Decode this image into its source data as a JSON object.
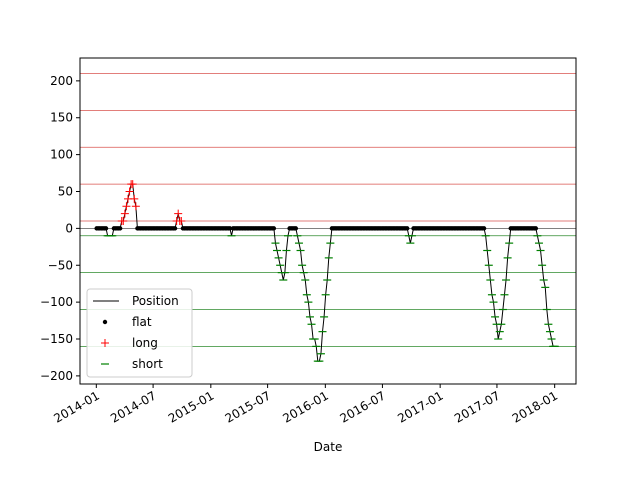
{
  "chart_data": {
    "type": "line",
    "title": "",
    "xlabel": "Date",
    "ylabel": "",
    "x_tick_labels": [
      "2014-01",
      "2014-07",
      "2015-01",
      "2015-07",
      "2016-01",
      "2016-07",
      "2017-01",
      "2017-07",
      "2018-01"
    ],
    "y_ticks": [
      -200,
      -150,
      -100,
      -50,
      0,
      50,
      100,
      150,
      200
    ],
    "xlim": [
      "2013-11-10",
      "2018-03-10"
    ],
    "ylim": [
      -211,
      231
    ],
    "grid": false,
    "legend_position": "lower-left",
    "legend": [
      "Position",
      "flat",
      "long",
      "short"
    ],
    "colors": {
      "position": "#000000",
      "flat": "#000000",
      "long": "#ff0000",
      "short": "#008000",
      "long_threshold": "#d9534f",
      "short_threshold": "#2e8b2e"
    },
    "long_thresholds": [
      10,
      60,
      110,
      160,
      210
    ],
    "short_thresholds": [
      -10,
      -60,
      -110,
      -160
    ],
    "series": [
      {
        "name": "Position",
        "points": [
          [
            "2014-01-02",
            0
          ],
          [
            "2014-02-01",
            0
          ],
          [
            "2014-02-08",
            -10
          ],
          [
            "2014-02-22",
            -10
          ],
          [
            "2014-03-01",
            0
          ],
          [
            "2014-03-20",
            0
          ],
          [
            "2014-04-01",
            20
          ],
          [
            "2014-04-10",
            40
          ],
          [
            "2014-04-18",
            50
          ],
          [
            "2014-04-24",
            60
          ],
          [
            "2014-04-30",
            50
          ],
          [
            "2014-05-06",
            30
          ],
          [
            "2014-05-12",
            0
          ],
          [
            "2014-09-10",
            0
          ],
          [
            "2014-09-18",
            20
          ],
          [
            "2014-09-26",
            10
          ],
          [
            "2014-10-05",
            0
          ],
          [
            "2015-03-01",
            0
          ],
          [
            "2015-03-08",
            -10
          ],
          [
            "2015-03-15",
            0
          ],
          [
            "2015-07-20",
            0
          ],
          [
            "2015-07-27",
            -20
          ],
          [
            "2015-08-05",
            -40
          ],
          [
            "2015-08-15",
            -60
          ],
          [
            "2015-08-22",
            -70
          ],
          [
            "2015-08-29",
            -40
          ],
          [
            "2015-09-05",
            0
          ],
          [
            "2015-10-01",
            0
          ],
          [
            "2015-10-08",
            -20
          ],
          [
            "2015-10-20",
            -50
          ],
          [
            "2015-11-01",
            -80
          ],
          [
            "2015-11-10",
            -110
          ],
          [
            "2015-11-20",
            -140
          ],
          [
            "2015-12-01",
            -160
          ],
          [
            "2015-12-10",
            -180
          ],
          [
            "2015-12-18",
            -170
          ],
          [
            "2015-12-25",
            -130
          ],
          [
            "2016-01-05",
            -80
          ],
          [
            "2016-01-15",
            -30
          ],
          [
            "2016-01-22",
            0
          ],
          [
            "2016-09-15",
            0
          ],
          [
            "2016-09-22",
            -10
          ],
          [
            "2016-10-01",
            -20
          ],
          [
            "2016-10-08",
            0
          ],
          [
            "2017-05-20",
            0
          ],
          [
            "2017-05-28",
            -20
          ],
          [
            "2017-06-05",
            -50
          ],
          [
            "2017-06-15",
            -90
          ],
          [
            "2017-06-25",
            -120
          ],
          [
            "2017-07-05",
            -150
          ],
          [
            "2017-07-15",
            -130
          ],
          [
            "2017-07-25",
            -90
          ],
          [
            "2017-08-05",
            -40
          ],
          [
            "2017-08-15",
            0
          ],
          [
            "2017-11-01",
            0
          ],
          [
            "2017-11-10",
            -20
          ],
          [
            "2017-11-20",
            -40
          ],
          [
            "2017-12-01",
            -80
          ],
          [
            "2017-12-10",
            -120
          ],
          [
            "2017-12-20",
            -150
          ],
          [
            "2018-01-01",
            -160
          ]
        ]
      }
    ]
  }
}
